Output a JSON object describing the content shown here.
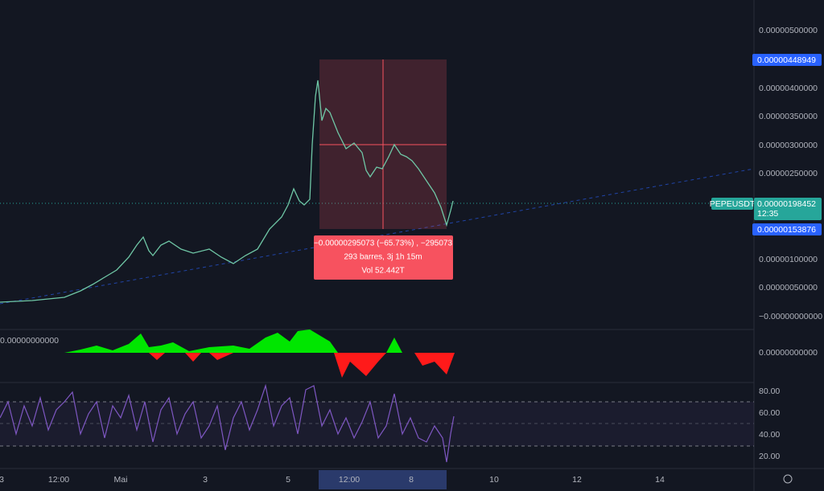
{
  "symbol": "PEPEUSDT",
  "price_axis": {
    "labels": [
      "0.00000500000",
      "0.00000400000",
      "0.00000350000",
      "0.00000300000",
      "0.00000250000",
      "0.00000100000",
      "0.00000050000",
      "−0.00000000000"
    ]
  },
  "badges": {
    "high": "0.00000448949",
    "last": "0.00000198452",
    "countdown": "12:35",
    "low": "0.00000153876"
  },
  "oscillator": {
    "left_label": "0.00000000000",
    "axis_label": "0.00000000000"
  },
  "rsi": {
    "labels": [
      "80.00",
      "60.00",
      "40.00",
      "20.00"
    ]
  },
  "time_axis": {
    "labels": [
      "3",
      "12:00",
      "Mai",
      "3",
      "5",
      "12:00",
      "8",
      "10",
      "12",
      "14"
    ]
  },
  "measure": {
    "line1": "−0.00000295073 (−65.73%) , −295073",
    "line2": "293 barres, 3j 1h 15m",
    "line3": "Vol 52.442T"
  }
}
